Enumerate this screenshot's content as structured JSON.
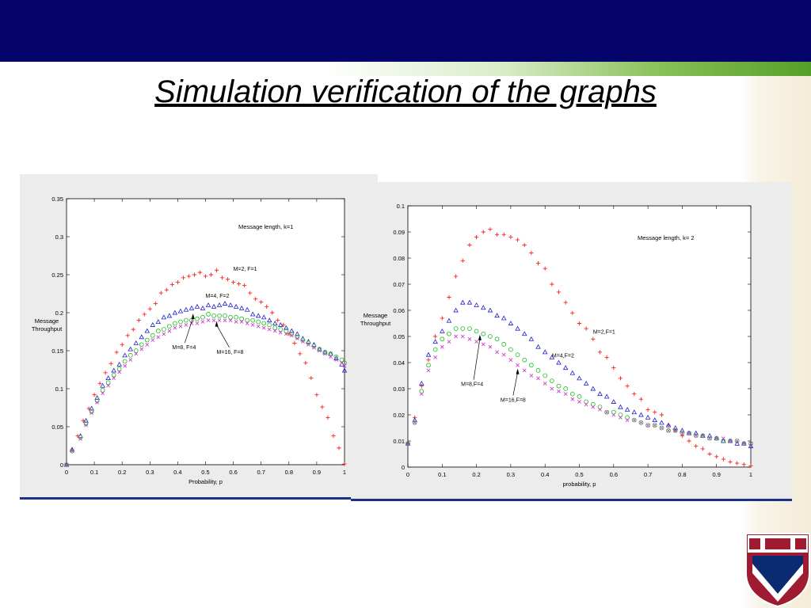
{
  "slide": {
    "title": "Simulation verification of the graphs"
  },
  "colors": {
    "header": "#04046b",
    "series_red": "#ff2020",
    "series_blue": "#2020d0",
    "series_green": "#20c020",
    "series_magenta": "#d040d0",
    "panel_bg": "#ececec",
    "underline": "#1d2f8a"
  },
  "chart_data": [
    {
      "type": "scatter",
      "title": "",
      "annotation": "Message length, k=1",
      "xlabel": "Probability, p",
      "ylabel": "Message Throughput",
      "ylabel_lines": [
        "Message",
        "Throughput"
      ],
      "xlim": [
        0,
        1
      ],
      "ylim": [
        0,
        0.35
      ],
      "xticks": [
        "0",
        "0.1",
        "0.2",
        "0.3",
        "0.4",
        "0.5",
        "0.6",
        "0.7",
        "0.8",
        "0.9",
        "1"
      ],
      "yticks": [
        "0",
        "0.05",
        "0.1",
        "0.15",
        "0.2",
        "0.25",
        "0.3",
        "0.35"
      ],
      "grid": false,
      "series": [
        {
          "name": "M=2, F=1",
          "marker": "+",
          "color": "#ff2020",
          "x": [
            0,
            0.02,
            0.04,
            0.06,
            0.08,
            0.1,
            0.12,
            0.14,
            0.16,
            0.18,
            0.2,
            0.22,
            0.24,
            0.26,
            0.28,
            0.3,
            0.32,
            0.34,
            0.36,
            0.38,
            0.4,
            0.42,
            0.44,
            0.46,
            0.48,
            0.5,
            0.52,
            0.54,
            0.56,
            0.58,
            0.6,
            0.62,
            0.64,
            0.66,
            0.68,
            0.7,
            0.72,
            0.74,
            0.76,
            0.78,
            0.8,
            0.82,
            0.84,
            0.86,
            0.88,
            0.9,
            0.92,
            0.94,
            0.96,
            0.98,
            1.0
          ],
          "y": [
            0,
            0.02,
            0.038,
            0.058,
            0.074,
            0.092,
            0.107,
            0.121,
            0.133,
            0.148,
            0.158,
            0.17,
            0.178,
            0.19,
            0.198,
            0.205,
            0.212,
            0.226,
            0.23,
            0.237,
            0.24,
            0.246,
            0.248,
            0.25,
            0.253,
            0.248,
            0.25,
            0.256,
            0.246,
            0.244,
            0.24,
            0.238,
            0.236,
            0.226,
            0.218,
            0.214,
            0.208,
            0.2,
            0.19,
            0.184,
            0.172,
            0.16,
            0.146,
            0.134,
            0.114,
            0.092,
            0.076,
            0.062,
            0.038,
            0.022,
            0.001
          ]
        },
        {
          "name": "M=4, F=2",
          "marker": "triangle",
          "color": "#2020d0",
          "x": [
            0,
            0.02,
            0.05,
            0.07,
            0.09,
            0.11,
            0.13,
            0.15,
            0.17,
            0.19,
            0.21,
            0.23,
            0.25,
            0.27,
            0.29,
            0.31,
            0.33,
            0.35,
            0.37,
            0.39,
            0.41,
            0.43,
            0.45,
            0.47,
            0.49,
            0.51,
            0.53,
            0.55,
            0.57,
            0.59,
            0.61,
            0.63,
            0.65,
            0.67,
            0.69,
            0.71,
            0.73,
            0.75,
            0.77,
            0.79,
            0.81,
            0.83,
            0.85,
            0.87,
            0.89,
            0.91,
            0.93,
            0.95,
            0.97,
            0.99,
            1.0
          ],
          "y": [
            0,
            0.02,
            0.038,
            0.058,
            0.074,
            0.088,
            0.104,
            0.114,
            0.124,
            0.132,
            0.144,
            0.152,
            0.16,
            0.168,
            0.176,
            0.184,
            0.188,
            0.194,
            0.196,
            0.2,
            0.202,
            0.204,
            0.206,
            0.208,
            0.206,
            0.21,
            0.208,
            0.21,
            0.212,
            0.21,
            0.208,
            0.206,
            0.204,
            0.198,
            0.196,
            0.194,
            0.19,
            0.186,
            0.184,
            0.18,
            0.176,
            0.172,
            0.166,
            0.162,
            0.158,
            0.152,
            0.148,
            0.146,
            0.14,
            0.132,
            0.124
          ]
        },
        {
          "name": "M=8, F=4",
          "marker": "circle",
          "color": "#20c020",
          "x": [
            0,
            0.02,
            0.05,
            0.07,
            0.09,
            0.11,
            0.13,
            0.15,
            0.17,
            0.19,
            0.21,
            0.23,
            0.25,
            0.27,
            0.29,
            0.31,
            0.33,
            0.35,
            0.37,
            0.39,
            0.41,
            0.43,
            0.45,
            0.47,
            0.49,
            0.51,
            0.53,
            0.55,
            0.57,
            0.59,
            0.61,
            0.63,
            0.65,
            0.67,
            0.69,
            0.71,
            0.73,
            0.75,
            0.77,
            0.79,
            0.81,
            0.83,
            0.85,
            0.87,
            0.89,
            0.91,
            0.93,
            0.95,
            0.97,
            0.99,
            1.0
          ],
          "y": [
            0,
            0.018,
            0.036,
            0.054,
            0.07,
            0.084,
            0.098,
            0.108,
            0.118,
            0.126,
            0.136,
            0.144,
            0.15,
            0.158,
            0.164,
            0.17,
            0.176,
            0.178,
            0.182,
            0.186,
            0.188,
            0.19,
            0.19,
            0.192,
            0.194,
            0.198,
            0.196,
            0.196,
            0.196,
            0.194,
            0.194,
            0.192,
            0.19,
            0.19,
            0.188,
            0.186,
            0.184,
            0.18,
            0.178,
            0.176,
            0.172,
            0.168,
            0.164,
            0.16,
            0.156,
            0.152,
            0.148,
            0.146,
            0.142,
            0.138,
            0.134
          ]
        },
        {
          "name": "M=16, F=8",
          "marker": "x",
          "color": "#d040d0",
          "x": [
            0,
            0.02,
            0.05,
            0.07,
            0.09,
            0.11,
            0.13,
            0.15,
            0.17,
            0.19,
            0.21,
            0.23,
            0.25,
            0.27,
            0.29,
            0.31,
            0.33,
            0.35,
            0.37,
            0.39,
            0.41,
            0.43,
            0.45,
            0.47,
            0.49,
            0.51,
            0.53,
            0.55,
            0.57,
            0.59,
            0.61,
            0.63,
            0.65,
            0.67,
            0.69,
            0.71,
            0.73,
            0.75,
            0.77,
            0.79,
            0.81,
            0.83,
            0.85,
            0.87,
            0.89,
            0.91,
            0.93,
            0.95,
            0.97,
            0.99,
            1.0
          ],
          "y": [
            0,
            0.018,
            0.034,
            0.052,
            0.068,
            0.082,
            0.094,
            0.104,
            0.114,
            0.122,
            0.13,
            0.138,
            0.146,
            0.152,
            0.158,
            0.164,
            0.168,
            0.172,
            0.176,
            0.18,
            0.182,
            0.184,
            0.186,
            0.186,
            0.188,
            0.19,
            0.19,
            0.19,
            0.19,
            0.19,
            0.188,
            0.188,
            0.186,
            0.184,
            0.182,
            0.18,
            0.178,
            0.176,
            0.174,
            0.172,
            0.17,
            0.166,
            0.162,
            0.158,
            0.154,
            0.15,
            0.146,
            0.142,
            0.138,
            0.134,
            0.13
          ]
        }
      ],
      "labels": [
        {
          "text": "M=2, F=1",
          "x": 0.6,
          "y": 0.255
        },
        {
          "text": "M=4, F=2",
          "x": 0.5,
          "y": 0.22
        },
        {
          "text": "M=8, F=4",
          "x": 0.38,
          "y": 0.152,
          "arrow_to": [
            0.455,
            0.2
          ]
        },
        {
          "text": "M=16, F=8",
          "x": 0.54,
          "y": 0.146,
          "arrow_to": [
            0.54,
            0.19
          ]
        }
      ]
    },
    {
      "type": "scatter",
      "title": "",
      "annotation": "Message length, k= 2",
      "xlabel": "probability, p",
      "ylabel": "Message Throughput",
      "ylabel_lines": [
        "Message",
        "Throughput"
      ],
      "xlim": [
        0,
        1
      ],
      "ylim": [
        0,
        0.1
      ],
      "xticks": [
        "0",
        "0.1",
        "0.2",
        "0.3",
        "0.4",
        "0.5",
        "0.6",
        "0.7",
        "0.8",
        "0.9",
        "1"
      ],
      "yticks": [
        "0",
        "0.01",
        "0.02",
        "0.03",
        "0.04",
        "0.05",
        "0.06",
        "0.07",
        "0.08",
        "0.09",
        "0.1"
      ],
      "grid": false,
      "series": [
        {
          "name": "M=2,F=1",
          "marker": "+",
          "color": "#ff2020",
          "x": [
            0,
            0.02,
            0.04,
            0.06,
            0.08,
            0.1,
            0.12,
            0.14,
            0.16,
            0.18,
            0.2,
            0.22,
            0.24,
            0.26,
            0.28,
            0.3,
            0.32,
            0.34,
            0.36,
            0.38,
            0.4,
            0.42,
            0.44,
            0.46,
            0.48,
            0.5,
            0.52,
            0.54,
            0.56,
            0.58,
            0.6,
            0.62,
            0.64,
            0.66,
            0.68,
            0.7,
            0.72,
            0.74,
            0.76,
            0.78,
            0.8,
            0.82,
            0.84,
            0.86,
            0.88,
            0.9,
            0.92,
            0.94,
            0.96,
            0.98,
            1.0
          ],
          "y": [
            0.009,
            0.019,
            0.031,
            0.041,
            0.05,
            0.057,
            0.065,
            0.073,
            0.079,
            0.085,
            0.088,
            0.09,
            0.091,
            0.089,
            0.089,
            0.088,
            0.087,
            0.085,
            0.082,
            0.078,
            0.076,
            0.07,
            0.067,
            0.063,
            0.059,
            0.055,
            0.053,
            0.049,
            0.044,
            0.042,
            0.038,
            0.034,
            0.031,
            0.028,
            0.026,
            0.022,
            0.021,
            0.02,
            0.016,
            0.014,
            0.012,
            0.01,
            0.008,
            0.007,
            0.005,
            0.004,
            0.003,
            0.002,
            0.0015,
            0.001,
            0.0005
          ]
        },
        {
          "name": "M=4,F=2",
          "marker": "triangle",
          "color": "#2020d0",
          "x": [
            0,
            0.02,
            0.04,
            0.06,
            0.08,
            0.1,
            0.12,
            0.14,
            0.16,
            0.18,
            0.2,
            0.22,
            0.24,
            0.26,
            0.28,
            0.3,
            0.32,
            0.34,
            0.36,
            0.38,
            0.4,
            0.42,
            0.44,
            0.46,
            0.48,
            0.5,
            0.52,
            0.54,
            0.56,
            0.58,
            0.6,
            0.62,
            0.64,
            0.66,
            0.68,
            0.7,
            0.72,
            0.74,
            0.76,
            0.78,
            0.8,
            0.82,
            0.84,
            0.86,
            0.88,
            0.9,
            0.92,
            0.94,
            0.96,
            0.98,
            1.0
          ],
          "y": [
            0.009,
            0.018,
            0.032,
            0.043,
            0.048,
            0.052,
            0.056,
            0.06,
            0.063,
            0.063,
            0.062,
            0.061,
            0.06,
            0.058,
            0.057,
            0.055,
            0.053,
            0.051,
            0.049,
            0.046,
            0.044,
            0.042,
            0.04,
            0.038,
            0.036,
            0.034,
            0.032,
            0.03,
            0.028,
            0.027,
            0.025,
            0.023,
            0.022,
            0.021,
            0.02,
            0.019,
            0.018,
            0.017,
            0.016,
            0.015,
            0.014,
            0.013,
            0.013,
            0.012,
            0.012,
            0.011,
            0.01,
            0.01,
            0.009,
            0.009,
            0.008
          ]
        },
        {
          "name": "M=8,F=4",
          "marker": "circle",
          "color": "#20c020",
          "x": [
            0,
            0.02,
            0.04,
            0.06,
            0.08,
            0.1,
            0.12,
            0.14,
            0.16,
            0.18,
            0.2,
            0.22,
            0.24,
            0.26,
            0.28,
            0.3,
            0.32,
            0.34,
            0.36,
            0.38,
            0.4,
            0.42,
            0.44,
            0.46,
            0.48,
            0.5,
            0.52,
            0.54,
            0.56,
            0.58,
            0.6,
            0.62,
            0.64,
            0.66,
            0.68,
            0.7,
            0.72,
            0.74,
            0.76,
            0.78,
            0.8,
            0.82,
            0.84,
            0.86,
            0.88,
            0.9,
            0.92,
            0.94,
            0.96,
            0.98,
            1.0
          ],
          "y": [
            0.009,
            0.017,
            0.029,
            0.039,
            0.045,
            0.049,
            0.051,
            0.053,
            0.053,
            0.053,
            0.052,
            0.051,
            0.05,
            0.049,
            0.047,
            0.045,
            0.043,
            0.041,
            0.039,
            0.037,
            0.035,
            0.033,
            0.031,
            0.03,
            0.028,
            0.027,
            0.025,
            0.024,
            0.023,
            0.021,
            0.021,
            0.02,
            0.019,
            0.018,
            0.017,
            0.016,
            0.016,
            0.015,
            0.014,
            0.014,
            0.013,
            0.013,
            0.012,
            0.012,
            0.011,
            0.011,
            0.01,
            0.01,
            0.01,
            0.009,
            0.009
          ]
        },
        {
          "name": "M=16,F=8",
          "marker": "x",
          "color": "#d040d0",
          "x": [
            0,
            0.02,
            0.04,
            0.06,
            0.08,
            0.1,
            0.12,
            0.14,
            0.16,
            0.18,
            0.2,
            0.22,
            0.24,
            0.26,
            0.28,
            0.3,
            0.32,
            0.34,
            0.36,
            0.38,
            0.4,
            0.42,
            0.44,
            0.46,
            0.48,
            0.5,
            0.52,
            0.54,
            0.56,
            0.58,
            0.6,
            0.62,
            0.64,
            0.66,
            0.68,
            0.7,
            0.72,
            0.74,
            0.76,
            0.78,
            0.8,
            0.82,
            0.84,
            0.86,
            0.88,
            0.9,
            0.92,
            0.94,
            0.96,
            0.98,
            1.0
          ],
          "y": [
            0.009,
            0.017,
            0.028,
            0.037,
            0.042,
            0.046,
            0.048,
            0.05,
            0.05,
            0.049,
            0.048,
            0.047,
            0.046,
            0.044,
            0.043,
            0.041,
            0.039,
            0.037,
            0.035,
            0.034,
            0.032,
            0.03,
            0.029,
            0.028,
            0.026,
            0.025,
            0.024,
            0.023,
            0.022,
            0.021,
            0.02,
            0.019,
            0.018,
            0.018,
            0.017,
            0.016,
            0.016,
            0.015,
            0.014,
            0.014,
            0.013,
            0.013,
            0.012,
            0.012,
            0.011,
            0.011,
            0.011,
            0.01,
            0.01,
            0.009,
            0.009
          ]
        }
      ],
      "labels": [
        {
          "text": "M=2,F=1",
          "x": 0.54,
          "y": 0.051
        },
        {
          "text": "M=4,F=2",
          "x": 0.42,
          "y": 0.042
        },
        {
          "text": "M=8,F=4",
          "x": 0.155,
          "y": 0.031,
          "arrow_to": [
            0.21,
            0.051
          ]
        },
        {
          "text": "M=16,F=8",
          "x": 0.27,
          "y": 0.025,
          "arrow_to": [
            0.32,
            0.038
          ]
        }
      ]
    }
  ]
}
